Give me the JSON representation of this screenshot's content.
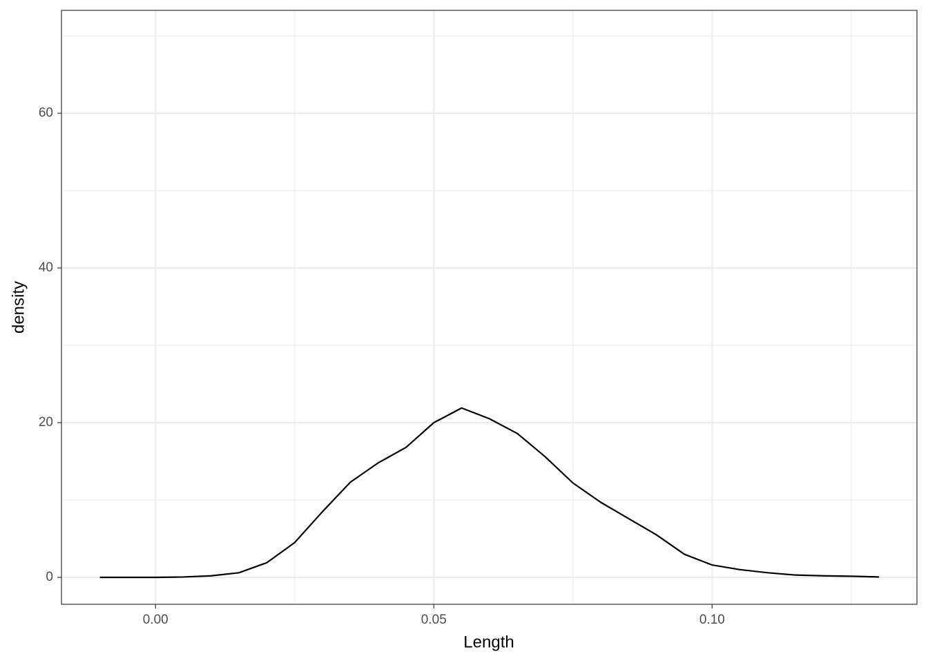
{
  "chart_data": {
    "type": "line",
    "x_label": "Length",
    "y_label": "density",
    "x": [
      -0.01,
      -0.005,
      0.0,
      0.005,
      0.01,
      0.015,
      0.02,
      0.025,
      0.03,
      0.035,
      0.04,
      0.045,
      0.05,
      0.055,
      0.06,
      0.065,
      0.07,
      0.075,
      0.08,
      0.085,
      0.09,
      0.095,
      0.1,
      0.105,
      0.11,
      0.115,
      0.12,
      0.125,
      0.13
    ],
    "series": [
      {
        "name": "density",
        "color": "#000000",
        "values": [
          0,
          0,
          0,
          0.05,
          0.2,
          0.6,
          1.9,
          4.5,
          8.5,
          12.3,
          14.8,
          16.8,
          20.0,
          21.9,
          20.5,
          18.6,
          15.6,
          12.2,
          9.7,
          7.6,
          5.5,
          3.0,
          1.6,
          1.0,
          0.6,
          0.3,
          0.2,
          0.15,
          0.05
        ]
      }
    ],
    "xlim": [
      -0.0169,
      0.1368
    ],
    "ylim": [
      -3.48,
      73.3
    ],
    "xticks": [
      {
        "value": 0,
        "label": "0.00"
      },
      {
        "value": 0.05,
        "label": "0.05"
      },
      {
        "value": 0.1,
        "label": "0.10"
      }
    ],
    "yticks": [
      0,
      20,
      40,
      60
    ],
    "x_minor_grid": [
      0.025,
      0.075,
      0.125
    ],
    "y_minor_grid": [
      10,
      30,
      50,
      70
    ],
    "grid": true
  }
}
